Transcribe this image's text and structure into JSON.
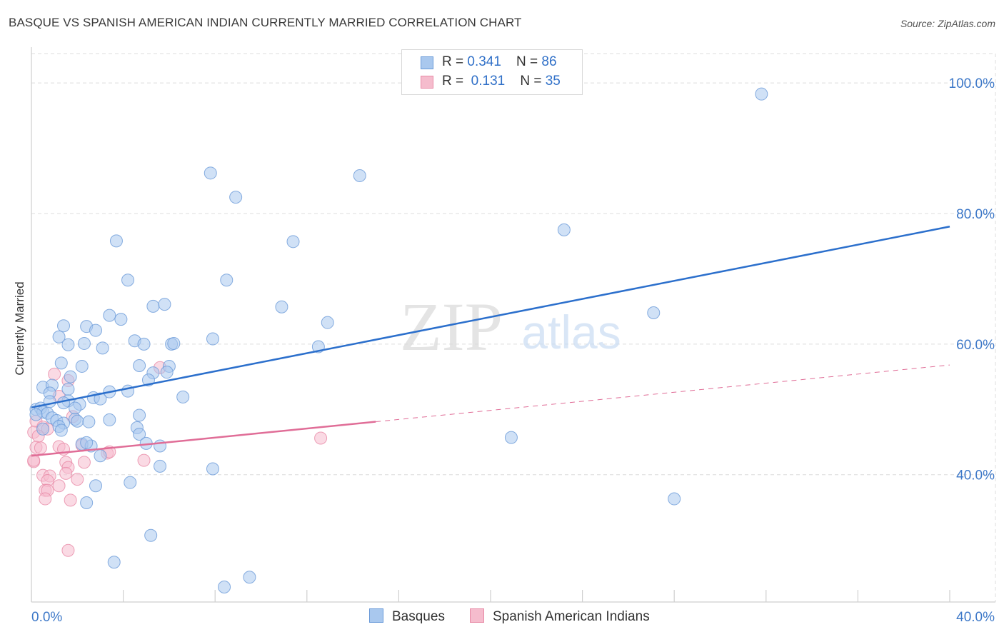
{
  "header": {
    "title": "BASQUE VS SPANISH AMERICAN INDIAN CURRENTLY MARRIED CORRELATION CHART",
    "source": "Source: ZipAtlas.com"
  },
  "legend": {
    "rows": [
      {
        "r_label": "R = ",
        "r_value": "0.341",
        "n_label": "N = ",
        "n_value": "86"
      },
      {
        "r_label": "R = ",
        "r_value": " 0.131",
        "n_label": "N = ",
        "n_value": "35"
      }
    ],
    "series_names": [
      "Basques",
      "Spanish American Indians"
    ]
  },
  "colors": {
    "blue_fill": "#a9c8ee",
    "blue_stroke": "#6a9ad8",
    "blue_line": "#2b6fcc",
    "pink_fill": "#f5bccd",
    "pink_stroke": "#e88aa6",
    "pink_line": "#e06d97",
    "tick_label": "#3d78c8",
    "grid": "#dcdcdc"
  },
  "chart_data": {
    "type": "scatter",
    "title": "BASQUE VS SPANISH AMERICAN INDIAN CURRENTLY MARRIED CORRELATION CHART",
    "xlabel": "",
    "ylabel": "Currently Married",
    "xlim": [
      0,
      40
    ],
    "ylim": [
      20.5,
      104.5
    ],
    "x_tick_labels": [
      {
        "value": 0,
        "label": "0.0%"
      },
      {
        "value": 40,
        "label": "40.0%"
      }
    ],
    "y_tick_labels": [
      {
        "value": 40,
        "label": "40.0%"
      },
      {
        "value": 60,
        "label": "60.0%"
      },
      {
        "value": 80,
        "label": "80.0%"
      },
      {
        "value": 100,
        "label": "100.0%"
      }
    ],
    "watermark": {
      "zip": "ZIP",
      "atlas": "atlas"
    },
    "series": [
      {
        "name": "Basques",
        "R": 0.341,
        "N": 86,
        "trend": {
          "x0": 0,
          "y0": 50.3,
          "x1": 40,
          "y1": 78.0,
          "solid_until": 40
        },
        "points": [
          [
            31.8,
            98.3
          ],
          [
            7.8,
            86.2
          ],
          [
            14.3,
            85.8
          ],
          [
            8.9,
            82.5
          ],
          [
            23.2,
            77.5
          ],
          [
            3.7,
            75.8
          ],
          [
            11.4,
            75.7
          ],
          [
            4.2,
            69.8
          ],
          [
            8.5,
            69.8
          ],
          [
            27.1,
            64.8
          ],
          [
            5.3,
            65.8
          ],
          [
            5.8,
            66.1
          ],
          [
            10.9,
            65.7
          ],
          [
            3.4,
            64.4
          ],
          [
            12.9,
            63.3
          ],
          [
            3.9,
            63.8
          ],
          [
            1.4,
            62.8
          ],
          [
            2.4,
            62.7
          ],
          [
            2.8,
            62.1
          ],
          [
            1.2,
            61.1
          ],
          [
            4.5,
            60.5
          ],
          [
            7.9,
            60.8
          ],
          [
            4.9,
            60.0
          ],
          [
            6.1,
            60.0
          ],
          [
            6.2,
            60.1
          ],
          [
            1.6,
            59.9
          ],
          [
            2.3,
            60.1
          ],
          [
            3.1,
            59.4
          ],
          [
            12.5,
            59.6
          ],
          [
            1.3,
            57.1
          ],
          [
            2.2,
            56.6
          ],
          [
            4.7,
            56.7
          ],
          [
            6.0,
            56.6
          ],
          [
            5.3,
            55.6
          ],
          [
            5.9,
            55.7
          ],
          [
            5.1,
            54.5
          ],
          [
            1.7,
            55.0
          ],
          [
            0.5,
            53.4
          ],
          [
            0.9,
            53.7
          ],
          [
            1.6,
            53.1
          ],
          [
            3.4,
            52.7
          ],
          [
            4.2,
            52.8
          ],
          [
            6.6,
            51.9
          ],
          [
            0.8,
            52.5
          ],
          [
            2.7,
            51.8
          ],
          [
            3.0,
            51.6
          ],
          [
            1.6,
            51.3
          ],
          [
            0.8,
            51.2
          ],
          [
            1.4,
            51.0
          ],
          [
            2.1,
            50.8
          ],
          [
            1.9,
            50.2
          ],
          [
            0.2,
            50.0
          ],
          [
            0.4,
            50.2
          ],
          [
            0.5,
            49.6
          ],
          [
            0.7,
            49.4
          ],
          [
            0.2,
            49.2
          ],
          [
            0.9,
            48.7
          ],
          [
            1.1,
            48.3
          ],
          [
            1.9,
            48.5
          ],
          [
            2.0,
            48.2
          ],
          [
            2.5,
            48.1
          ],
          [
            3.4,
            48.4
          ],
          [
            4.7,
            49.1
          ],
          [
            1.4,
            47.9
          ],
          [
            1.2,
            47.4
          ],
          [
            0.5,
            47.0
          ],
          [
            1.3,
            46.8
          ],
          [
            4.6,
            47.2
          ],
          [
            4.7,
            46.2
          ],
          [
            20.9,
            45.7
          ],
          [
            2.2,
            44.7
          ],
          [
            5.0,
            44.8
          ],
          [
            5.6,
            44.4
          ],
          [
            2.6,
            44.4
          ],
          [
            2.4,
            44.9
          ],
          [
            3.0,
            42.9
          ],
          [
            5.6,
            41.3
          ],
          [
            7.9,
            40.9
          ],
          [
            4.3,
            38.8
          ],
          [
            2.8,
            38.3
          ],
          [
            28.0,
            36.3
          ],
          [
            2.4,
            35.7
          ],
          [
            5.2,
            30.7
          ],
          [
            3.6,
            26.6
          ],
          [
            9.5,
            24.3
          ],
          [
            8.4,
            22.8
          ]
        ]
      },
      {
        "name": "Spanish American Indians",
        "R": 0.131,
        "N": 35,
        "trend": {
          "x0": 0,
          "y0": 42.9,
          "x1": 40,
          "y1": 56.8,
          "solid_until": 15.0
        },
        "points": [
          [
            1.0,
            55.4
          ],
          [
            1.6,
            54.4
          ],
          [
            5.6,
            56.4
          ],
          [
            1.2,
            52.0
          ],
          [
            1.8,
            48.9
          ],
          [
            0.2,
            48.2
          ],
          [
            0.5,
            47.3
          ],
          [
            0.1,
            46.5
          ],
          [
            0.7,
            47.0
          ],
          [
            0.3,
            45.9
          ],
          [
            12.6,
            45.6
          ],
          [
            0.2,
            44.2
          ],
          [
            0.4,
            44.1
          ],
          [
            1.2,
            44.3
          ],
          [
            1.4,
            43.9
          ],
          [
            2.2,
            44.5
          ],
          [
            3.3,
            43.3
          ],
          [
            3.4,
            43.5
          ],
          [
            0.1,
            42.0
          ],
          [
            0.1,
            42.2
          ],
          [
            1.5,
            41.9
          ],
          [
            2.3,
            41.9
          ],
          [
            4.9,
            42.2
          ],
          [
            1.6,
            41.1
          ],
          [
            1.5,
            40.2
          ],
          [
            0.5,
            39.9
          ],
          [
            0.8,
            39.8
          ],
          [
            0.7,
            39.1
          ],
          [
            2.0,
            39.3
          ],
          [
            1.2,
            38.3
          ],
          [
            0.6,
            37.6
          ],
          [
            0.7,
            37.6
          ],
          [
            0.6,
            36.3
          ],
          [
            1.7,
            36.1
          ],
          [
            1.6,
            28.4
          ]
        ]
      }
    ]
  }
}
